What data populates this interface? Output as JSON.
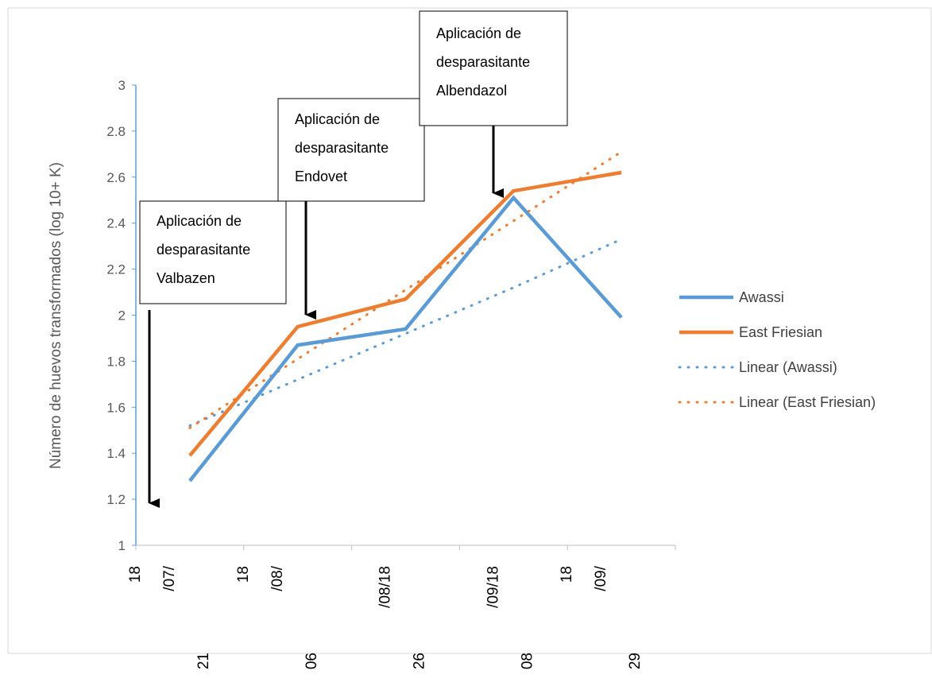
{
  "chart_data": {
    "type": "line",
    "ylabel": "Número de huevos transformados (log 10+ K)",
    "ylim": [
      1,
      3
    ],
    "yticks": [
      "1",
      "1.2",
      "1.4",
      "1.6",
      "1.8",
      "2",
      "2.2",
      "2.4",
      "2.6",
      "2.8",
      "3"
    ],
    "x_tick_labels": [
      {
        "line1": "18",
        "line2": "/07/",
        "line3": "21"
      },
      {
        "line1": "18",
        "line2": "/08/",
        "line3": "06"
      },
      {
        "line1": "",
        "line2": "/08/18",
        "line3": "26"
      },
      {
        "line1": "",
        "line2": "/09/18",
        "line3": "08"
      },
      {
        "line1": "18",
        "line2": "/09/",
        "line3": "29"
      }
    ],
    "series": [
      {
        "name": "Awassi",
        "color": "#5b9bd5",
        "style": "solid",
        "values": [
          1.28,
          1.87,
          1.94,
          2.51,
          1.99
        ]
      },
      {
        "name": "East Friesian",
        "color": "#ed7d31",
        "style": "solid",
        "values": [
          1.39,
          1.95,
          2.07,
          2.54,
          2.62
        ]
      },
      {
        "name": "Linear (Awassi)",
        "color": "#5b9bd5",
        "style": "dotted",
        "values": [
          1.52,
          1.72,
          1.92,
          2.12,
          2.33
        ]
      },
      {
        "name": "Linear (East Friesian)",
        "color": "#ed7d31",
        "style": "dotted",
        "values": [
          1.51,
          1.81,
          2.11,
          2.41,
          2.71
        ]
      }
    ],
    "legend_position": "right",
    "grid": false,
    "annotations": [
      {
        "lines": [
          "Aplicación de",
          "desparasitante",
          "Valbazen"
        ]
      },
      {
        "lines": [
          "Aplicación de",
          "desparasitante",
          "Endovet"
        ]
      },
      {
        "lines": [
          "Aplicación de",
          "desparasitante",
          "Albendazol"
        ]
      }
    ]
  }
}
